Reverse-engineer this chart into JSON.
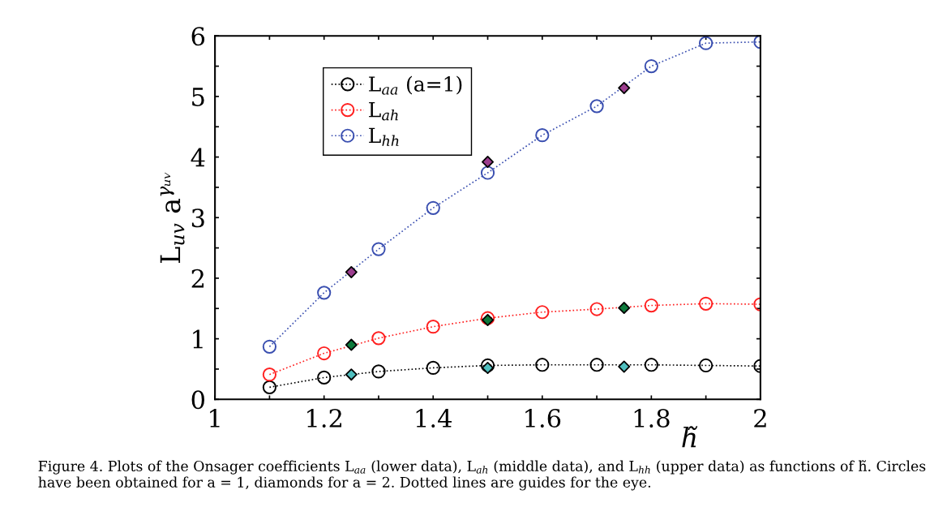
{
  "chart_data": {
    "type": "line",
    "xlabel": "h̃",
    "ylabel": "L$_{uv}$ a$^{γᵤᵥ}$",
    "x": [
      1.1,
      1.2,
      1.3,
      1.4,
      1.5,
      1.6,
      1.7,
      1.8,
      1.9,
      2.0
    ],
    "series": [
      {
        "name": "L$_{aa}$ (a=1)",
        "color": "#000000",
        "values": [
          0.2,
          0.36,
          0.46,
          0.52,
          0.56,
          0.57,
          0.57,
          0.57,
          0.56,
          0.55
        ]
      },
      {
        "name": "L$_{ah}$",
        "color": "#ff2020",
        "values": [
          0.41,
          0.76,
          1.01,
          1.2,
          1.34,
          1.44,
          1.49,
          1.55,
          1.58,
          1.57
        ]
      },
      {
        "name": "L$_{hh}$",
        "color": "#3a4fb0",
        "values": [
          0.87,
          1.76,
          2.48,
          3.16,
          3.74,
          4.36,
          4.84,
          5.5,
          5.88,
          5.9
        ]
      },
      {
        "type": "scatter",
        "marker": "diamond",
        "color": "#4fbfbf",
        "x": [
          1.25,
          1.5,
          1.75
        ],
        "values": [
          0.41,
          0.52,
          0.54
        ]
      },
      {
        "type": "scatter",
        "marker": "diamond",
        "color": "#0e7a3c",
        "x": [
          1.25,
          1.5,
          1.75
        ],
        "values": [
          0.9,
          1.31,
          1.51
        ]
      },
      {
        "type": "scatter",
        "marker": "diamond",
        "color": "#9c3d8f",
        "x": [
          1.25,
          1.5,
          1.75
        ],
        "values": [
          2.1,
          3.92,
          5.14
        ]
      }
    ],
    "marker": "circle",
    "line_style": "dotted",
    "grid": false,
    "legend": "top left",
    "xlim": [
      1,
      2
    ],
    "ylim": [
      0,
      6
    ],
    "xticks": [
      1,
      {
        "value": 1.1,
        "label": null
      },
      1.2,
      {
        "value": 1.3,
        "label": null
      },
      1.4,
      {
        "value": 1.5,
        "label": null
      },
      1.6,
      {
        "value": 1.7,
        "label": null
      },
      1.8,
      {
        "value": 1.9,
        "label": null
      },
      2
    ],
    "yticks": [
      0,
      {
        "value": 0.5,
        "label": null
      },
      1,
      {
        "value": 1.5,
        "label": null
      },
      2,
      {
        "value": 2.5,
        "label": null
      },
      3,
      {
        "value": 3.5,
        "label": null
      },
      4,
      {
        "value": 4.5,
        "label": null
      },
      5,
      {
        "value": 5.5,
        "label": null
      },
      6
    ],
    "annotations": [
      "Figure 4. Plots of the Onsager coefficients L$_{aa}$ (lower data), L$_{ah}$ (middle data), and L$_{hh}$ (upper data) as functions of h̃. Circles have been obtained for a = 1, diamonds for a = 2. Dotted lines are guides for the eye."
    ]
  }
}
